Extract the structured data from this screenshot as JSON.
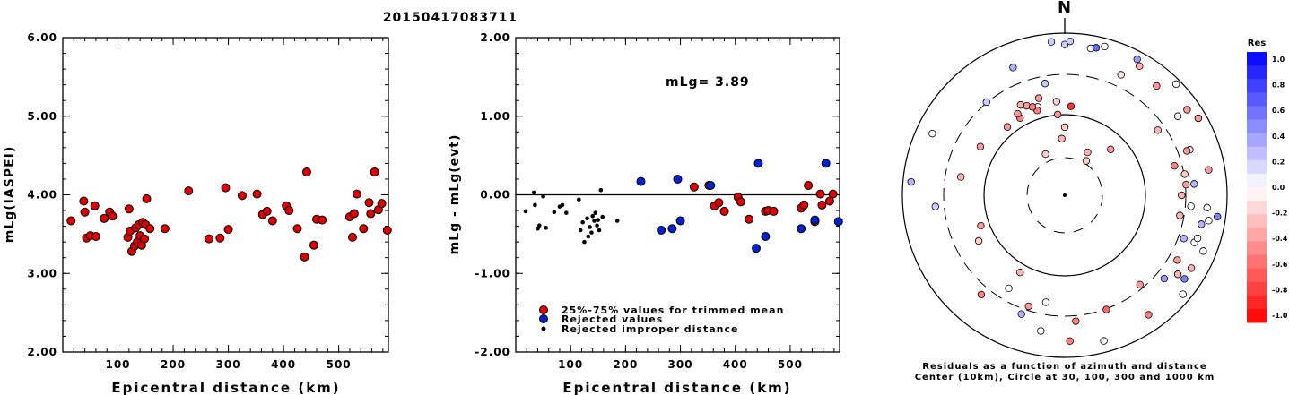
{
  "title": "20150417083711",
  "chart_data": [
    {
      "type": "scatter",
      "xlabel": "Epicentral distance (km)",
      "ylabel": "mLg(IASPEI)",
      "xlim": [
        0,
        590
      ],
      "ylim": [
        2.0,
        6.0
      ],
      "x_ticks": [
        "100",
        "200",
        "300",
        "400",
        "500"
      ],
      "y_ticks": [
        "2.00",
        "3.00",
        "4.00",
        "5.00",
        "6.00"
      ],
      "points": [
        [
          15,
          3.67
        ],
        [
          38,
          3.92
        ],
        [
          40,
          3.78
        ],
        [
          43,
          3.45
        ],
        [
          50,
          3.48
        ],
        [
          58,
          3.86
        ],
        [
          60,
          3.47
        ],
        [
          75,
          3.7
        ],
        [
          85,
          3.78
        ],
        [
          90,
          3.73
        ],
        [
          118,
          3.46
        ],
        [
          120,
          3.82
        ],
        [
          122,
          3.54
        ],
        [
          125,
          3.28
        ],
        [
          130,
          3.35
        ],
        [
          132,
          3.58
        ],
        [
          135,
          3.4
        ],
        [
          138,
          3.62
        ],
        [
          140,
          3.48
        ],
        [
          143,
          3.36
        ],
        [
          145,
          3.65
        ],
        [
          148,
          3.44
        ],
        [
          150,
          3.62
        ],
        [
          152,
          3.95
        ],
        [
          158,
          3.57
        ],
        [
          185,
          3.57
        ],
        [
          228,
          4.05
        ],
        [
          265,
          3.44
        ],
        [
          285,
          3.45
        ],
        [
          295,
          4.09
        ],
        [
          300,
          3.56
        ],
        [
          325,
          3.99
        ],
        [
          352,
          4.01
        ],
        [
          362,
          3.75
        ],
        [
          370,
          3.79
        ],
        [
          380,
          3.67
        ],
        [
          405,
          3.86
        ],
        [
          410,
          3.8
        ],
        [
          425,
          3.57
        ],
        [
          438,
          3.21
        ],
        [
          442,
          4.29
        ],
        [
          455,
          3.36
        ],
        [
          460,
          3.69
        ],
        [
          470,
          3.68
        ],
        [
          520,
          3.72
        ],
        [
          525,
          3.46
        ],
        [
          528,
          3.76
        ],
        [
          533,
          4.01
        ],
        [
          545,
          3.57
        ],
        [
          555,
          3.9
        ],
        [
          558,
          3.76
        ],
        [
          565,
          4.29
        ],
        [
          572,
          3.81
        ],
        [
          578,
          3.89
        ],
        [
          588,
          3.55
        ]
      ]
    },
    {
      "type": "scatter",
      "xlabel": "Epicentral distance (km)",
      "ylabel": "mLg - mLg(evt)",
      "xlim": [
        0,
        590
      ],
      "ylim": [
        -2.0,
        2.0
      ],
      "x_ticks": [
        "100",
        "200",
        "300",
        "400",
        "500"
      ],
      "y_ticks": [
        "-2.00",
        "-1.00",
        "0.00",
        "1.00",
        "2.00"
      ],
      "annotation": "mLg= 3.89",
      "legend": [
        "25%-75% values for trimmed mean",
        "Rejected values",
        "Rejected improper distance"
      ],
      "colors": {
        "trimmed": "#dd0000",
        "rejected": "#0022cc",
        "improper": "#000000"
      },
      "trimmed_points": [
        [
          325,
          0.1
        ],
        [
          352,
          0.12
        ],
        [
          362,
          -0.14
        ],
        [
          370,
          -0.1
        ],
        [
          380,
          -0.21
        ],
        [
          405,
          -0.03
        ],
        [
          410,
          -0.09
        ],
        [
          425,
          -0.31
        ],
        [
          455,
          -0.21
        ],
        [
          460,
          -0.2
        ],
        [
          470,
          -0.21
        ],
        [
          520,
          -0.17
        ],
        [
          525,
          -0.13
        ],
        [
          533,
          0.12
        ],
        [
          545,
          -0.34
        ],
        [
          555,
          0.01
        ],
        [
          558,
          -0.13
        ],
        [
          572,
          -0.08
        ],
        [
          578,
          0.01
        ]
      ],
      "rejected_points": [
        [
          228,
          0.17
        ],
        [
          265,
          -0.45
        ],
        [
          285,
          -0.43
        ],
        [
          295,
          0.2
        ],
        [
          300,
          -0.33
        ],
        [
          355,
          0.12
        ],
        [
          438,
          -0.68
        ],
        [
          442,
          0.4
        ],
        [
          455,
          -0.53
        ],
        [
          520,
          -0.43
        ],
        [
          545,
          -0.32
        ],
        [
          565,
          0.4
        ],
        [
          588,
          -0.34
        ]
      ],
      "improper_points": [
        [
          18,
          -0.21
        ],
        [
          33,
          0.03
        ],
        [
          35,
          -0.13
        ],
        [
          40,
          -0.43
        ],
        [
          43,
          -0.39
        ],
        [
          50,
          -0.02
        ],
        [
          55,
          -0.42
        ],
        [
          70,
          -0.22
        ],
        [
          80,
          -0.15
        ],
        [
          85,
          -0.13
        ],
        [
          92,
          -0.23
        ],
        [
          115,
          -0.06
        ],
        [
          118,
          -0.45
        ],
        [
          122,
          -0.35
        ],
        [
          125,
          -0.6
        ],
        [
          130,
          -0.3
        ],
        [
          132,
          -0.53
        ],
        [
          135,
          -0.41
        ],
        [
          138,
          -0.48
        ],
        [
          140,
          -0.27
        ],
        [
          143,
          -0.33
        ],
        [
          145,
          -0.23
        ],
        [
          148,
          -0.39
        ],
        [
          150,
          -0.32
        ],
        [
          152,
          -0.45
        ],
        [
          155,
          0.06
        ],
        [
          158,
          -0.28
        ],
        [
          185,
          -0.33
        ]
      ]
    },
    {
      "type": "scatter",
      "subtype": "polar",
      "north_label": "N",
      "caption_line1": "Residuals as a function of azimuth and distance",
      "caption_line2": "Center (10km), Circle at 30, 100, 300 and 1000 km",
      "colorbar_title": "Res",
      "colorbar_ticks": [
        "1.0",
        "0.8",
        "0.6",
        "0.4",
        "0.2",
        "0.0",
        "-0.2",
        "-0.4",
        "-0.6",
        "-0.8",
        "-1.0"
      ],
      "points": [
        [
          2,
          0.0
        ],
        [
          0,
          -0.2
        ],
        [
          -3,
          -0.3
        ],
        [
          -25,
          -0.2
        ],
        [
          4,
          -0.8
        ],
        [
          -5,
          -0.4
        ],
        [
          32,
          -0.2
        ],
        [
          28,
          -0.3
        ],
        [
          45,
          -0.4
        ],
        [
          -17,
          0.0
        ],
        [
          -30,
          -0.5
        ],
        [
          -60,
          -0.4
        ],
        [
          -80,
          -0.3
        ],
        [
          -110,
          -0.4
        ],
        [
          -118,
          -0.2
        ],
        [
          -150,
          -0.3
        ],
        [
          -149,
          0.0
        ],
        [
          -170,
          0.0
        ],
        [
          175,
          -0.5
        ],
        [
          160,
          -0.6
        ],
        [
          140,
          -0.4
        ],
        [
          120,
          -0.4
        ],
        [
          90,
          -0.3
        ],
        [
          80,
          -0.2
        ],
        [
          70,
          -0.1
        ],
        [
          95,
          0.0
        ],
        [
          110,
          0.0
        ],
        [
          125,
          -0.3
        ],
        [
          45,
          0.0
        ],
        [
          60,
          -0.4
        ],
        [
          30,
          -0.3
        ],
        [
          -18,
          -0.5
        ],
        [
          -30,
          -0.4
        ],
        [
          -23,
          -0.4
        ],
        [
          -26,
          -0.3
        ],
        [
          -20,
          -0.5
        ],
        [
          -15,
          -0.4
        ],
        [
          -5,
          -0.2
        ],
        [
          -40,
          -0.4
        ],
        [
          -85,
          0.3
        ],
        [
          -65,
          0.0
        ],
        [
          -140,
          -0.5
        ],
        [
          -160,
          0.3
        ],
        [
          -170,
          0.0
        ],
        [
          178,
          -0.5
        ],
        [
          165,
          0.0
        ],
        [
          145,
          -0.5
        ],
        [
          125,
          0.5
        ],
        [
          112,
          0.0
        ],
        [
          100,
          0.0
        ],
        [
          98,
          0.5
        ],
        [
          95,
          0.0
        ],
        [
          85,
          0.3
        ],
        [
          80,
          -0.4
        ],
        [
          70,
          -0.4
        ],
        [
          60,
          -0.4
        ],
        [
          55,
          -0.4
        ],
        [
          40,
          -0.4
        ],
        [
          25,
          -0.1
        ],
        [
          15,
          0.0
        ],
        [
          10,
          0.0
        ],
        [
          -5,
          0.2
        ],
        [
          0,
          0.2
        ],
        [
          2,
          0.2
        ],
        [
          12,
          0.6
        ],
        [
          28,
          0.4
        ],
        [
          -22,
          0.3
        ],
        [
          -40,
          0.2
        ],
        [
          -10,
          0.2
        ],
        [
          55,
          0.0
        ],
        [
          110,
          0.3
        ],
        [
          130,
          0.4
        ],
        [
          -95,
          0.2
        ],
        [
          108,
          0.0
        ],
        [
          102,
          0.3
        ],
        [
          -162,
          -0.4
        ],
        [
          100,
          -0.3
        ],
        [
          85,
          -0.4
        ],
        [
          75,
          -0.5
        ],
        [
          55,
          -0.3
        ],
        [
          120,
          -0.3
        ],
        [
          130,
          0.0
        ]
      ],
      "point_radii_fraction": [
        0.0,
        0.42,
        0.35,
        0.28,
        0.55,
        0.5,
        0.25,
        0.3,
        0.4,
        0.57,
        0.55,
        0.6,
        0.65,
        0.55,
        0.6,
        0.55,
        0.67,
        0.67,
        0.78,
        0.75,
        0.72,
        0.8,
        0.72,
        0.75,
        0.82,
        0.78,
        0.85,
        0.85,
        0.97,
        0.95,
        0.92,
        0.55,
        0.58,
        0.6,
        0.62,
        0.58,
        0.62,
        0.58,
        0.55,
        0.95,
        0.9,
        0.8,
        0.78,
        0.85,
        0.9,
        0.93,
        0.9,
        0.9,
        0.92,
        0.9,
        0.95,
        0.88,
        0.8,
        0.9,
        0.8,
        0.95,
        0.92,
        0.88,
        0.82,
        0.95,
        0.92,
        0.95,
        0.93,
        0.95,
        0.93,
        0.95,
        0.85,
        0.75,
        0.7,
        0.85,
        0.78,
        0.8,
        0.8,
        0.86,
        0.86,
        0.72,
        0.72,
        0.75,
        0.7,
        0.7,
        0.9,
        0.95
      ]
    }
  ]
}
